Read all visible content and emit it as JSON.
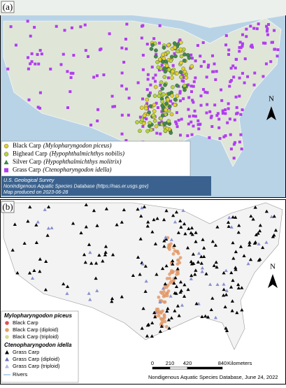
{
  "panel_a": {
    "label": "(a)",
    "north": "N",
    "legend": [
      {
        "name": "Black Carp",
        "scientific": "(Mylopharyngodon piceus)"
      },
      {
        "name": "Bighead Carp",
        "scientific": "(Hypophthalmichthys nobilis)"
      },
      {
        "name": "Silver Carp",
        "scientific": "(Hypophthalmichthys molitrix)"
      },
      {
        "name": "Grass Carp",
        "scientific": "(Ctenopharyngodon idella)"
      }
    ],
    "credits": [
      "U.S. Geological Survey",
      "Nonindigenous Aquatic Species Database (https://nas.er.usgs.gov)",
      "Map produced on 2023-06-28"
    ]
  },
  "panel_b": {
    "label": "(b)",
    "north": "N",
    "legend": {
      "group_1": "Mylopharyngodon piceus",
      "items_1": [
        "Black Carp",
        "Black Carp (diploid)",
        "Black Carp (triploid)"
      ],
      "group_2": "Ctenopharyngodon idella",
      "items_2": [
        "Grass Carp",
        "Grass Carp (diploid)",
        "Grass Carp (triploid)"
      ],
      "rivers": "Rivers"
    },
    "scale_bar": {
      "ticks": [
        0,
        210,
        420,
        840
      ],
      "unit": "Kilometers"
    },
    "source": "Nondigenous Aquatic Species Database, June 24, 2022"
  }
}
